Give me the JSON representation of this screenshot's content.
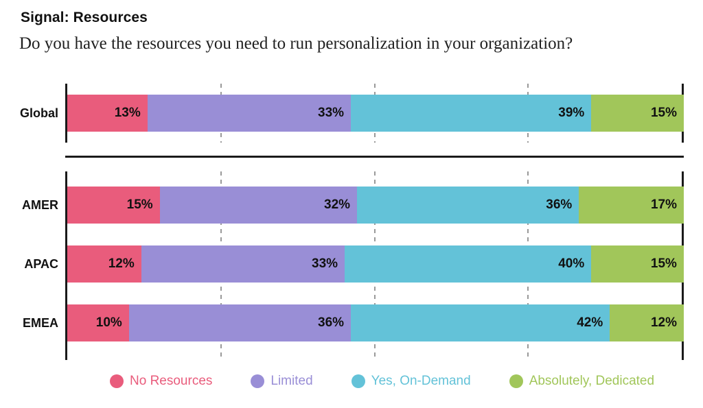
{
  "header": {
    "title": "Signal: Resources",
    "subtitle": "Do you have the resources you need to run personalization in your organization?"
  },
  "chart_data": {
    "type": "bar",
    "variant": "horizontal-stacked",
    "title": "Signal: Resources",
    "subtitle": "Do you have the resources you need to run personalization in your organization?",
    "unit": "%",
    "xlim": [
      0,
      100
    ],
    "gridlines_pct": [
      25,
      50,
      75
    ],
    "grid": "dashed-vertical",
    "legend_position": "bottom",
    "axis_color": "#1a1a1a",
    "gridline_color": "#999999",
    "value_label_color": "#111111",
    "series": [
      {
        "name": "No Resources",
        "color": "#E95C7C"
      },
      {
        "name": "Limited",
        "color": "#998ED6"
      },
      {
        "name": "Yes, On-Demand",
        "color": "#63C2D8"
      },
      {
        "name": "Absolutely, Dedicated",
        "color": "#A1C65A"
      }
    ],
    "panels": [
      {
        "name": "global",
        "rows": [
          {
            "label": "Global",
            "values": [
              13,
              33,
              39,
              15
            ]
          }
        ]
      },
      {
        "name": "regions",
        "rows": [
          {
            "label": "AMER",
            "values": [
              15,
              32,
              36,
              17
            ]
          },
          {
            "label": "APAC",
            "values": [
              12,
              33,
              40,
              15
            ]
          },
          {
            "label": "EMEA",
            "values": [
              10,
              36,
              42,
              12
            ]
          }
        ]
      }
    ]
  }
}
